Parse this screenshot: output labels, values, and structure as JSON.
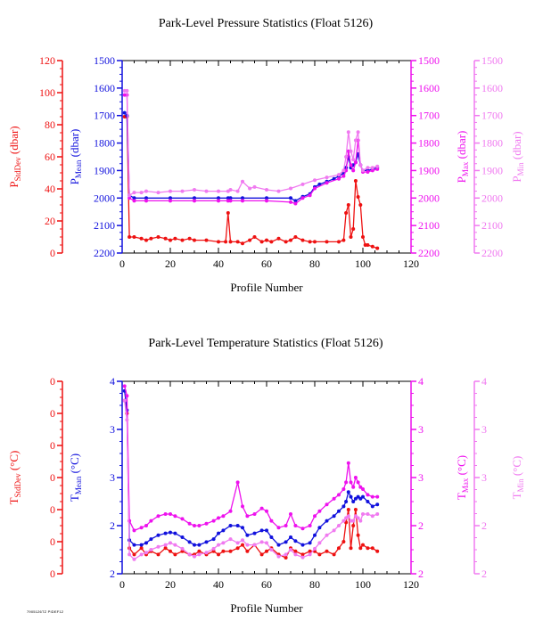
{
  "colors": {
    "stddev": "#ee1111",
    "mean": "#1111dd",
    "max": "#ee11ee",
    "min": "#f07af0",
    "axes": "#000000"
  },
  "footer_note": "7905126TZ PIDEF12",
  "chart_data": [
    {
      "type": "line",
      "title": "Park-Level Pressure Statistics (Float 5126)",
      "xlabel": "Profile Number",
      "xlim": [
        0,
        120
      ],
      "xticks": [
        "0",
        "20",
        "40",
        "60",
        "80",
        "100",
        "120"
      ],
      "grid": false,
      "axes": {
        "stddev": {
          "label_main": "P",
          "label_sub": "StdDev",
          "label_unit": " (dbar)",
          "side": "left-outer",
          "ylim": [
            0,
            120
          ],
          "ticks": [
            "0",
            "20",
            "40",
            "60",
            "80",
            "100",
            "120"
          ]
        },
        "mean": {
          "label_main": "P",
          "label_sub": "Mean",
          "label_unit": " (dbar)",
          "side": "left-inner",
          "ylim": [
            2200,
            1500
          ],
          "inverted": true,
          "ticks": [
            "1500",
            "1600",
            "1700",
            "1800",
            "1900",
            "2000",
            "2100",
            "2200"
          ]
        },
        "max": {
          "label_main": "P",
          "label_sub": "Max",
          "label_unit": " (dbar)",
          "side": "right-inner",
          "ylim": [
            2200,
            1500
          ],
          "inverted": true,
          "ticks": [
            "1500",
            "1600",
            "1700",
            "1800",
            "1900",
            "2000",
            "2100",
            "2200"
          ]
        },
        "min": {
          "label_main": "P",
          "label_sub": "Min",
          "label_unit": " (dbar)",
          "side": "right-outer",
          "ylim": [
            2200,
            1500
          ],
          "inverted": true,
          "ticks": [
            "1500",
            "1600",
            "1700",
            "1800",
            "1900",
            "2000",
            "2100",
            "2200"
          ]
        }
      },
      "series": [
        {
          "name": "P StdDev",
          "axis": "stddev",
          "x": [
            1,
            2,
            3,
            5,
            8,
            10,
            12,
            15,
            18,
            20,
            22,
            25,
            28,
            30,
            35,
            40,
            43,
            44,
            45,
            48,
            50,
            53,
            55,
            58,
            60,
            62,
            65,
            68,
            70,
            72,
            75,
            78,
            80,
            85,
            90,
            92,
            93,
            94,
            95,
            96,
            97,
            98,
            99,
            100,
            101,
            102,
            104,
            106
          ],
          "y": [
            85,
            85,
            10,
            10,
            9,
            8,
            9,
            10,
            9,
            8,
            9,
            8,
            9,
            8,
            8,
            7,
            7,
            25,
            7,
            7,
            6,
            8,
            10,
            7,
            8,
            7,
            9,
            7,
            8,
            10,
            8,
            7,
            7,
            7,
            7,
            8,
            25,
            30,
            10,
            15,
            45,
            35,
            30,
            10,
            5,
            5,
            4,
            3
          ]
        },
        {
          "name": "P Mean",
          "axis": "mean",
          "x": [
            1,
            2,
            3,
            5,
            10,
            20,
            30,
            40,
            44,
            45,
            50,
            60,
            70,
            72,
            75,
            78,
            80,
            82,
            85,
            88,
            90,
            92,
            93,
            94,
            95,
            96,
            97,
            98,
            99,
            100,
            102,
            104,
            106
          ],
          "y": [
            1690,
            1700,
            1990,
            2000,
            2000,
            2000,
            2000,
            2000,
            2000,
            2000,
            2000,
            2000,
            2000,
            2010,
            1995,
            1985,
            1960,
            1950,
            1940,
            1930,
            1920,
            1910,
            1890,
            1850,
            1890,
            1880,
            1870,
            1840,
            1880,
            1900,
            1900,
            1895,
            1890
          ]
        },
        {
          "name": "P Max",
          "axis": "max",
          "x": [
            1,
            2,
            3,
            5,
            10,
            20,
            30,
            40,
            44,
            45,
            50,
            60,
            70,
            72,
            75,
            78,
            80,
            85,
            90,
            92,
            93,
            94,
            95,
            96,
            97,
            98,
            99,
            100,
            102,
            104,
            106
          ],
          "y": [
            1625,
            1625,
            2000,
            2010,
            2010,
            2010,
            2010,
            2010,
            2010,
            2010,
            2010,
            2010,
            2015,
            2020,
            2000,
            1990,
            1965,
            1945,
            1930,
            1920,
            1900,
            1830,
            1880,
            1900,
            1870,
            1790,
            1880,
            1905,
            1905,
            1900,
            1895
          ]
        },
        {
          "name": "P Min",
          "axis": "min",
          "x": [
            1,
            2,
            3,
            5,
            8,
            10,
            15,
            20,
            25,
            30,
            35,
            40,
            44,
            45,
            48,
            50,
            53,
            55,
            60,
            65,
            70,
            75,
            80,
            85,
            90,
            92,
            93,
            94,
            95,
            96,
            97,
            98,
            99,
            100,
            102,
            104,
            106
          ],
          "y": [
            1610,
            1610,
            1990,
            1980,
            1980,
            1975,
            1980,
            1975,
            1975,
            1970,
            1975,
            1975,
            1975,
            1970,
            1975,
            1940,
            1965,
            1960,
            1970,
            1975,
            1965,
            1950,
            1935,
            1925,
            1915,
            1900,
            1850,
            1760,
            1830,
            1860,
            1790,
            1760,
            1880,
            1900,
            1890,
            1890,
            1885
          ]
        }
      ]
    },
    {
      "type": "line",
      "title": "Park-Level Temperature Statistics (Float 5126)",
      "xlabel": "Profile Number",
      "xlim": [
        0,
        120
      ],
      "xticks": [
        "0",
        "20",
        "40",
        "60",
        "80",
        "100",
        "120"
      ],
      "grid": false,
      "axes": {
        "stddev": {
          "label_main": "T",
          "label_sub": "StdDev",
          "label_unit": " (°C)",
          "side": "left-outer",
          "ylim": [
            0,
            0.6
          ],
          "ticks": [
            "0",
            "0",
            "0",
            "0",
            "0",
            "0",
            "0"
          ]
        },
        "mean": {
          "label_main": "T",
          "label_sub": "Mean",
          "label_unit": " (°C)",
          "side": "left-inner",
          "ylim": [
            2,
            4
          ],
          "ticks": [
            "2",
            "2",
            "3",
            "3",
            "4"
          ]
        },
        "max": {
          "label_main": "T",
          "label_sub": "Max",
          "label_unit": " (°C)",
          "side": "right-inner",
          "ylim": [
            2,
            4
          ],
          "ticks": [
            "2",
            "2",
            "3",
            "3",
            "4"
          ]
        },
        "min": {
          "label_main": "T",
          "label_sub": "Min",
          "label_unit": " (°C)",
          "side": "right-outer",
          "ylim": [
            2,
            4
          ],
          "ticks": [
            "2",
            "2",
            "3",
            "3",
            "4"
          ]
        }
      },
      "series": [
        {
          "name": "T StdDev",
          "axis": "stddev",
          "x": [
            1,
            2,
            3,
            5,
            8,
            10,
            12,
            15,
            18,
            20,
            22,
            25,
            28,
            30,
            32,
            35,
            38,
            40,
            42,
            45,
            48,
            50,
            52,
            55,
            58,
            60,
            62,
            65,
            68,
            70,
            72,
            75,
            78,
            80,
            82,
            85,
            88,
            90,
            92,
            93,
            94,
            95,
            96,
            97,
            98,
            99,
            100,
            102,
            104,
            106
          ],
          "y": [
            0.54,
            0.5,
            0.08,
            0.06,
            0.08,
            0.06,
            0.07,
            0.06,
            0.08,
            0.07,
            0.06,
            0.07,
            0.06,
            0.06,
            0.07,
            0.06,
            0.07,
            0.06,
            0.07,
            0.07,
            0.08,
            0.09,
            0.07,
            0.09,
            0.06,
            0.07,
            0.08,
            0.06,
            0.05,
            0.08,
            0.07,
            0.06,
            0.07,
            0.07,
            0.06,
            0.07,
            0.06,
            0.08,
            0.1,
            0.16,
            0.2,
            0.08,
            0.15,
            0.2,
            0.12,
            0.08,
            0.09,
            0.08,
            0.08,
            0.07
          ]
        },
        {
          "name": "T Mean",
          "axis": "mean",
          "x": [
            1,
            2,
            3,
            5,
            8,
            10,
            12,
            15,
            18,
            20,
            22,
            25,
            28,
            30,
            32,
            35,
            38,
            40,
            42,
            45,
            48,
            50,
            52,
            55,
            58,
            60,
            62,
            65,
            68,
            70,
            72,
            75,
            78,
            80,
            82,
            85,
            88,
            90,
            92,
            93,
            94,
            95,
            96,
            97,
            98,
            99,
            100,
            102,
            104,
            106
          ],
          "y": [
            3.9,
            3.7,
            2.35,
            2.3,
            2.3,
            2.32,
            2.36,
            2.4,
            2.42,
            2.43,
            2.42,
            2.38,
            2.33,
            2.3,
            2.3,
            2.33,
            2.36,
            2.42,
            2.45,
            2.5,
            2.5,
            2.48,
            2.4,
            2.42,
            2.45,
            2.45,
            2.38,
            2.3,
            2.33,
            2.38,
            2.34,
            2.3,
            2.32,
            2.4,
            2.48,
            2.55,
            2.6,
            2.65,
            2.7,
            2.75,
            2.85,
            2.8,
            2.75,
            2.78,
            2.8,
            2.78,
            2.8,
            2.75,
            2.7,
            2.72
          ]
        },
        {
          "name": "T Max",
          "axis": "max",
          "x": [
            1,
            2,
            3,
            5,
            8,
            10,
            12,
            15,
            18,
            20,
            22,
            25,
            28,
            30,
            32,
            35,
            38,
            40,
            42,
            45,
            48,
            50,
            52,
            55,
            58,
            60,
            62,
            65,
            68,
            70,
            72,
            75,
            78,
            80,
            82,
            85,
            88,
            90,
            92,
            93,
            94,
            95,
            96,
            97,
            98,
            99,
            100,
            102,
            104,
            106
          ],
          "y": [
            3.95,
            3.85,
            2.55,
            2.45,
            2.48,
            2.5,
            2.55,
            2.6,
            2.62,
            2.62,
            2.6,
            2.57,
            2.52,
            2.5,
            2.5,
            2.52,
            2.55,
            2.58,
            2.6,
            2.65,
            2.95,
            2.7,
            2.6,
            2.62,
            2.68,
            2.65,
            2.55,
            2.48,
            2.5,
            2.62,
            2.5,
            2.47,
            2.5,
            2.6,
            2.65,
            2.72,
            2.78,
            2.82,
            2.88,
            2.95,
            3.15,
            2.95,
            2.9,
            3.0,
            2.95,
            2.9,
            2.88,
            2.82,
            2.8,
            2.8
          ]
        },
        {
          "name": "T Min",
          "axis": "min",
          "x": [
            1,
            2,
            3,
            5,
            8,
            10,
            12,
            15,
            18,
            20,
            22,
            25,
            28,
            30,
            32,
            35,
            38,
            40,
            42,
            45,
            48,
            50,
            52,
            55,
            58,
            60,
            62,
            65,
            68,
            70,
            72,
            75,
            78,
            80,
            82,
            85,
            88,
            90,
            92,
            93,
            94,
            95,
            96,
            97,
            98,
            99,
            100,
            102,
            104,
            106
          ],
          "y": [
            3.8,
            3.6,
            2.2,
            2.15,
            2.2,
            2.22,
            2.25,
            2.28,
            2.3,
            2.32,
            2.3,
            2.26,
            2.2,
            2.18,
            2.2,
            2.22,
            2.26,
            2.3,
            2.32,
            2.36,
            2.32,
            2.35,
            2.3,
            2.3,
            2.33,
            2.32,
            2.25,
            2.18,
            2.2,
            2.25,
            2.2,
            2.17,
            2.2,
            2.26,
            2.32,
            2.4,
            2.45,
            2.5,
            2.55,
            2.58,
            2.6,
            2.55,
            2.55,
            2.6,
            2.58,
            2.55,
            2.62,
            2.62,
            2.6,
            2.62
          ]
        }
      ]
    }
  ]
}
